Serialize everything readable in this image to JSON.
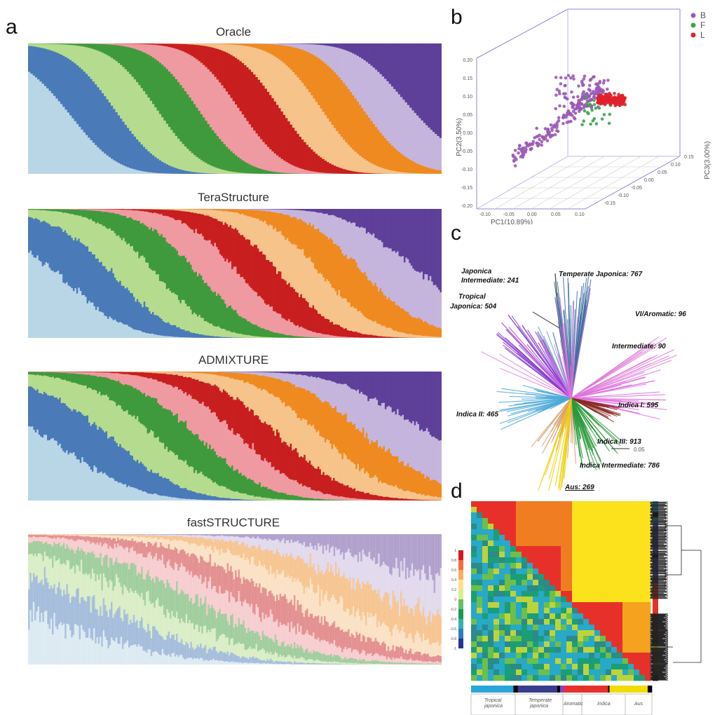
{
  "panel_labels": {
    "a": "a",
    "b": "b",
    "c": "c",
    "d": "d"
  },
  "colors": {
    "light_blue": "#b9d6e6",
    "blue": "#4a7ab8",
    "light_green": "#b5dc8e",
    "green": "#3f9a3c",
    "pink": "#ef9aa0",
    "red": "#c81e1f",
    "peach": "#f6c38a",
    "orange": "#ee8a20",
    "lavender": "#c5b5dc",
    "purple": "#5e3f99"
  },
  "chart_data": [
    {
      "id": "a",
      "type": "area",
      "titles": [
        "Oracle",
        "TeraStructure",
        "ADMIXTURE",
        "fastSTRUCTURE"
      ],
      "components": [
        "light_blue",
        "blue",
        "light_green",
        "green",
        "pink",
        "red",
        "peach",
        "orange",
        "lavender",
        "purple"
      ],
      "centers": [
        0.05,
        0.16,
        0.26,
        0.36,
        0.46,
        0.56,
        0.66,
        0.76,
        0.86,
        0.96
      ]
    },
    {
      "id": "b",
      "type": "scatter",
      "xlabel": "PC1(10.89%)",
      "ylabel": "PC2(3.50%)",
      "zlabel": "PC3(3.00%)",
      "xticks": [
        "-0.10",
        "-0.05",
        "0.00",
        "0.05",
        "0.10"
      ],
      "yticks": [
        "0.20",
        "0.15",
        "0.10",
        "0.05",
        "0.00",
        "-0.05",
        "-0.10",
        "-0.15",
        "-0.20"
      ],
      "zticks": [
        "0.15",
        "0.10",
        "0.05",
        "0.00",
        "-0.05",
        "-0.10",
        "-0.15"
      ],
      "legend": [
        {
          "name": "B",
          "color": "#9b59b6"
        },
        {
          "name": "F",
          "color": "#3fa34d"
        },
        {
          "name": "L",
          "color": "#e0202a"
        }
      ]
    },
    {
      "id": "c",
      "type": "tree",
      "clades": [
        {
          "label": "Temperate Japonica: 767",
          "color": "#3e6fa3"
        },
        {
          "label": "Japonica Intermediate: 241",
          "color": "#6aa0c8"
        },
        {
          "label": "Tropical Japonica: 504",
          "color": "#8a3fd0"
        },
        {
          "label": "VI/Aromatic: 96",
          "color": "#e07ad8"
        },
        {
          "label": "Intermediate: 90",
          "color": "#e070e0"
        },
        {
          "label": "Indica I: 595",
          "color": "#8b2a22"
        },
        {
          "label": "Indica II: 465",
          "color": "#4aa8d8"
        },
        {
          "label": "Indica III: 913",
          "color": "#2a9a3a"
        },
        {
          "label": "Indica Intermediate: 786",
          "color": "#d8a070"
        },
        {
          "label": "Aus: 269",
          "color": "#f0d000"
        }
      ],
      "scale_label": "0.05"
    },
    {
      "id": "d",
      "type": "heatmap",
      "colorbar_ticks": [
        "1",
        "0.8",
        "0.6",
        "0.4",
        "0.2",
        "0",
        "-0.2",
        "-0.4",
        "-0.6",
        "-0.8",
        "-1"
      ],
      "groups": [
        "Tropical japonica",
        "Temperate japonica",
        "Aromatic",
        "Indica",
        "Aus"
      ]
    }
  ],
  "text": {
    "c_labels": {
      "tj": "Temperate Japonica: 767",
      "ji1": "Japonica",
      "ji2": "Intermediate: 241",
      "tr1": "Tropical",
      "tr2": "Japonica: 504",
      "vi": "VI/Aromatic: 96",
      "im": "Intermediate: 90",
      "i1": "Indica I: 595",
      "i2": "Indica II: 465",
      "i3": "Indica III: 913",
      "ii": "Indica Intermediate: 786",
      "aus": "Aus: 269",
      "scale": "0.05"
    },
    "d_groups": {
      "trop1": "Tropical",
      "trop2": "japonica",
      "temp1": "Temperate",
      "temp2": "japonica",
      "arom": "Aromatic",
      "ind": "Indica",
      "aus": "Aus"
    },
    "b_axes": {
      "x": "PC1(10.89%)",
      "y": "PC2(3.50%)",
      "z": "PC3(3.00%)"
    },
    "b_legend": {
      "B": "B",
      "F": "F",
      "L": "L"
    }
  }
}
